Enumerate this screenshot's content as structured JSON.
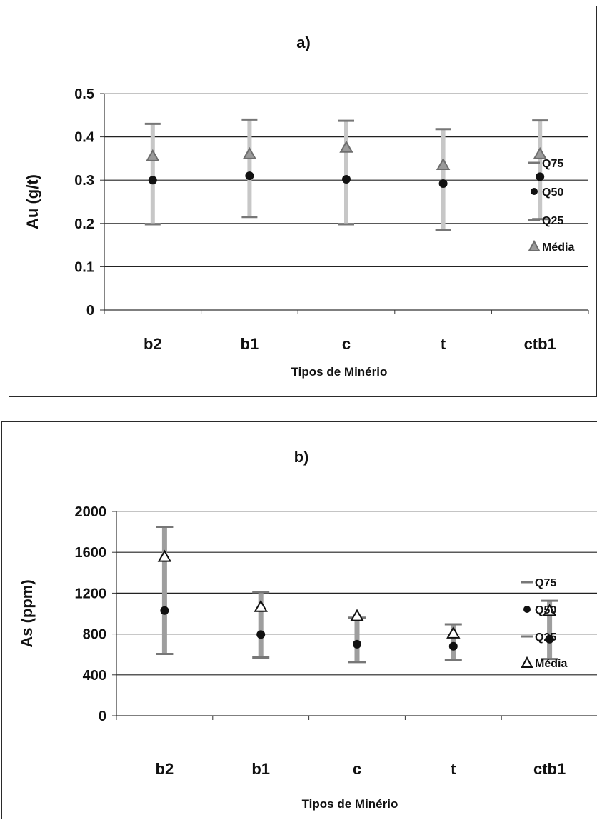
{
  "chart_data": [
    {
      "type": "scatter",
      "title": "a)",
      "xlabel": "Tipos de Minério",
      "ylabel": "Au (g/t)",
      "categories": [
        "b2",
        "b1",
        "c",
        "t",
        "ctb1"
      ],
      "ylim": [
        0,
        0.5
      ],
      "yticks": [
        "0",
        "0.1",
        "0.2",
        "0.3",
        "0.4",
        "0.5"
      ],
      "ytick_values": [
        0,
        0.1,
        0.2,
        0.3,
        0.4,
        0.5
      ],
      "gridlines": [
        0.1,
        0.2,
        0.3,
        0.4
      ],
      "legend_position": "right",
      "series": [
        {
          "name": "Q75",
          "marker": "dash",
          "values": [
            0.43,
            0.44,
            0.437,
            0.418,
            0.438
          ]
        },
        {
          "name": "Q50",
          "marker": "circle",
          "values": [
            0.3,
            0.31,
            0.302,
            0.292,
            0.308
          ]
        },
        {
          "name": "Q25",
          "marker": "dash",
          "values": [
            0.198,
            0.215,
            0.198,
            0.185,
            0.21
          ]
        },
        {
          "name": "Média",
          "marker": "triangle",
          "values": [
            0.355,
            0.36,
            0.375,
            0.335,
            0.36
          ]
        }
      ],
      "colors": {
        "error_bar": "#c7c7c7",
        "q50": "#111111",
        "media": "#9a9a9a",
        "grid": "#222222"
      }
    },
    {
      "type": "scatter",
      "title": "b)",
      "xlabel": "Tipos de Minério",
      "ylabel": "As (ppm)",
      "categories": [
        "b2",
        "b1",
        "c",
        "t",
        "ctb1"
      ],
      "ylim": [
        0,
        2000
      ],
      "yticks": [
        "0",
        "400",
        "800",
        "1200",
        "1600",
        "2000"
      ],
      "ytick_values": [
        0,
        400,
        800,
        1200,
        1600,
        2000
      ],
      "gridlines": [
        400,
        800,
        1200,
        1600
      ],
      "legend_position": "right",
      "series": [
        {
          "name": "Q75",
          "marker": "dash",
          "values": [
            1850,
            1210,
            960,
            895,
            1125
          ]
        },
        {
          "name": "Q50",
          "marker": "circle",
          "values": [
            1030,
            795,
            700,
            680,
            750
          ]
        },
        {
          "name": "Q25",
          "marker": "dash",
          "values": [
            605,
            570,
            525,
            545,
            555
          ]
        },
        {
          "name": "Média",
          "marker": "triangle",
          "values": [
            1555,
            1065,
            975,
            805,
            1025
          ]
        }
      ],
      "colors": {
        "error_bar": "#9e9e9e",
        "q50": "#111111",
        "media": "#ffffff",
        "grid": "#222222"
      }
    }
  ]
}
